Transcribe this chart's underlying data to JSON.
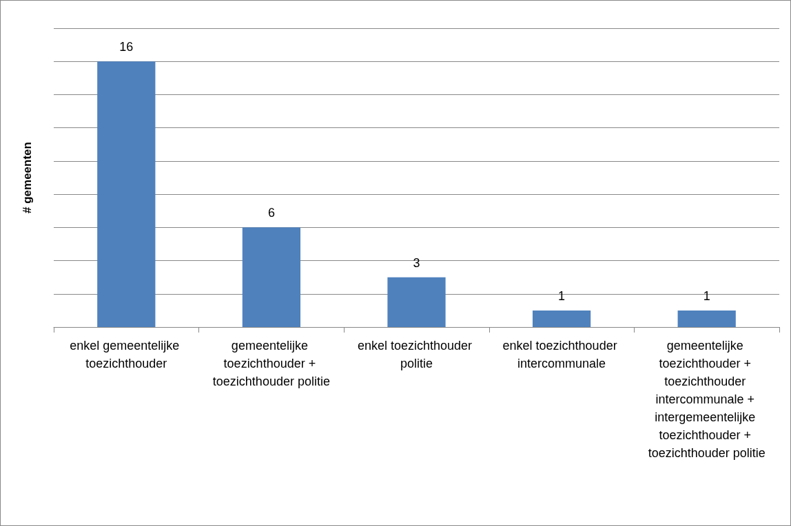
{
  "chart_data": {
    "type": "bar",
    "ylabel": "# gemeenten",
    "categories": [
      "enkel gemeentelijke toezichthouder",
      "gemeentelijke toezichthouder + toezichthouder politie",
      "enkel toezichthouder politie",
      "enkel toezichthouder intercommunale",
      "gemeentelijke toezichthouder + toezichthouder intercommunale + intergemeentelijke toezichthouder + toezichthouder politie"
    ],
    "values": [
      16,
      6,
      3,
      1,
      1
    ],
    "color": "#4f81bd",
    "data_labels": true,
    "ylim": [
      0,
      18
    ],
    "yticks": [
      {
        "value": 0,
        "label": null
      },
      {
        "value": 2,
        "label": null
      },
      {
        "value": 4,
        "label": null
      },
      {
        "value": 6,
        "label": null
      },
      {
        "value": 8,
        "label": null
      },
      {
        "value": 10,
        "label": null
      },
      {
        "value": 12,
        "label": null
      },
      {
        "value": 14,
        "label": null
      },
      {
        "value": 16,
        "label": null
      },
      {
        "value": 18,
        "label": null
      }
    ],
    "grid": "y",
    "tick_labels": "x"
  }
}
